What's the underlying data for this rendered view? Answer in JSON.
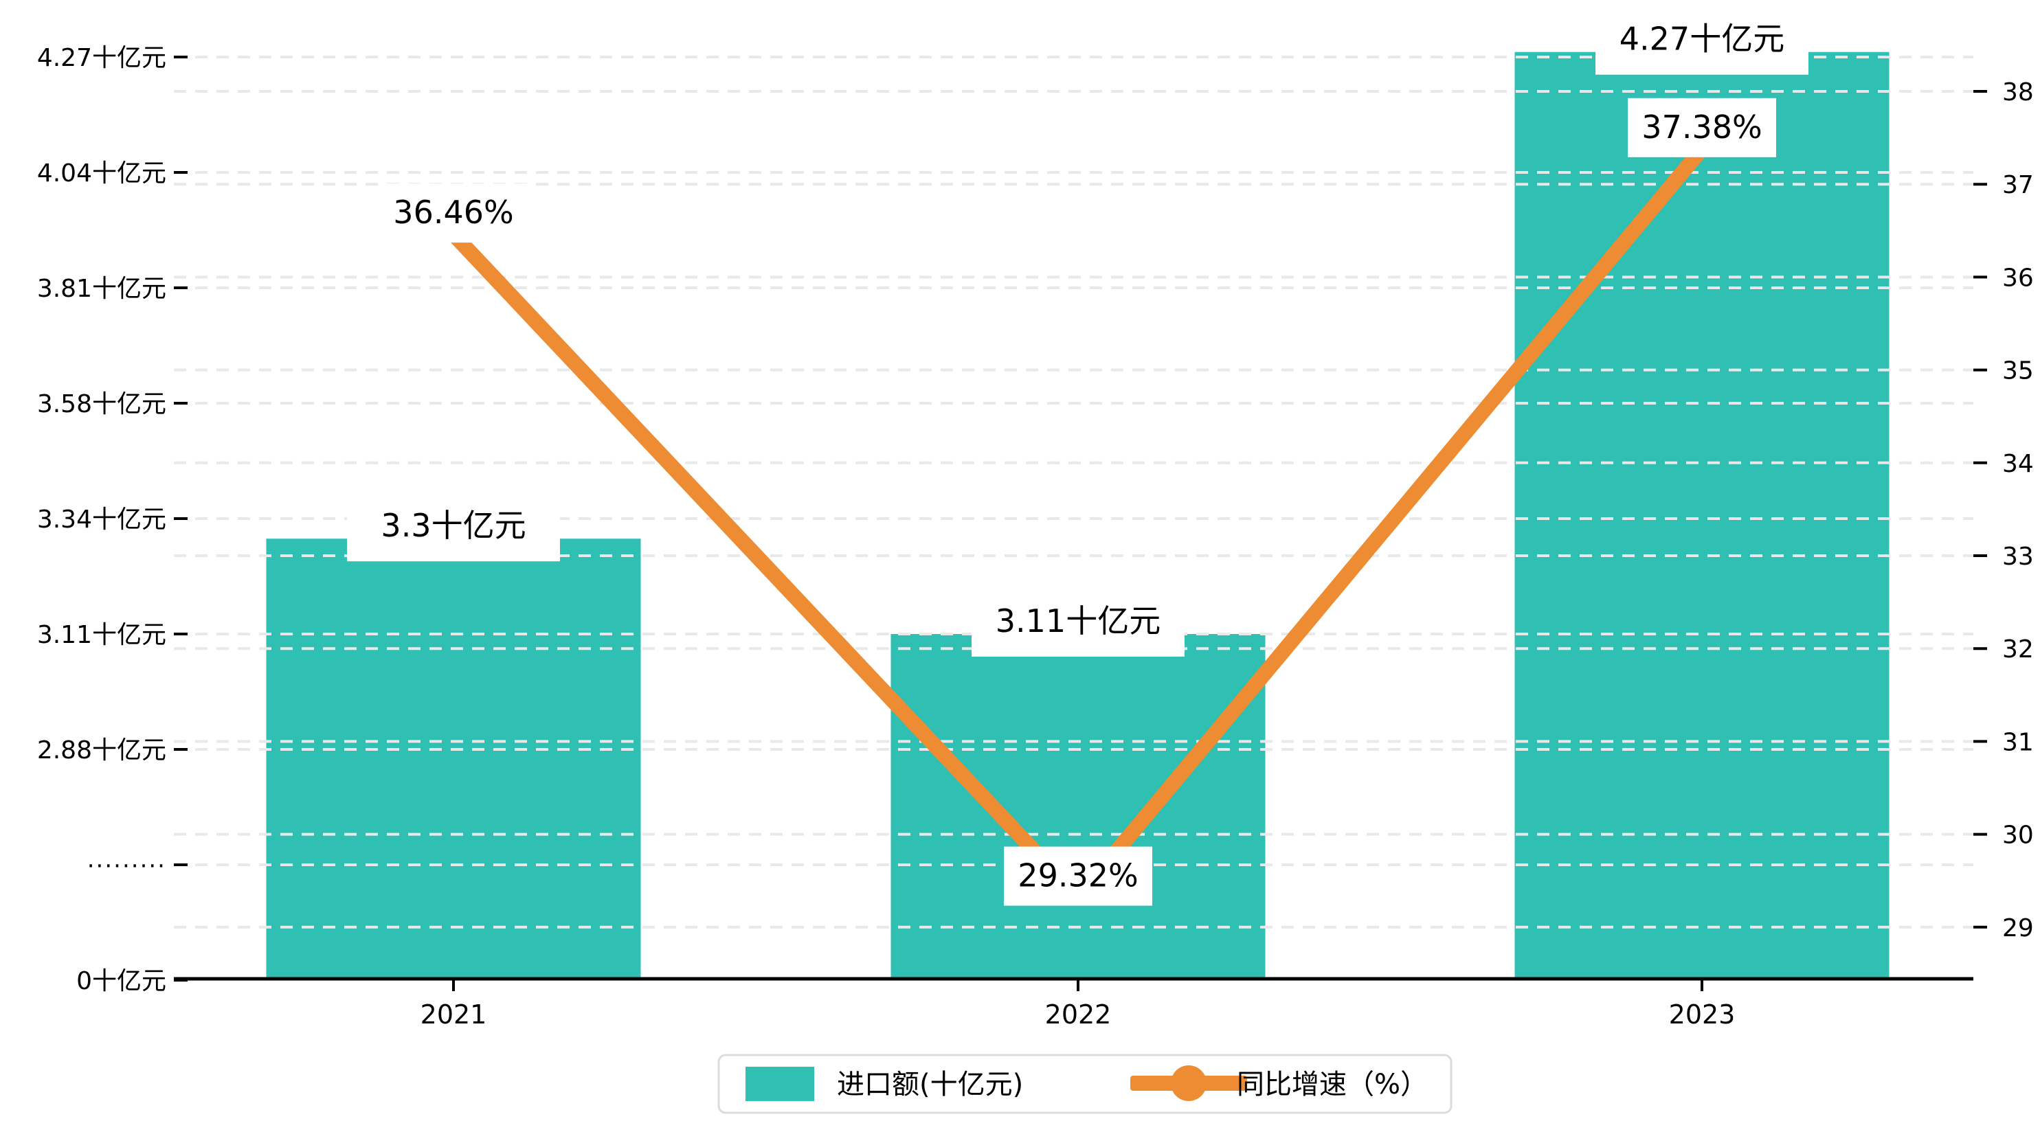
{
  "chart_data": {
    "type": "combo",
    "categories": [
      "2021",
      "2022",
      "2023"
    ],
    "series": [
      {
        "name": "进口额(十亿元)",
        "type": "bar",
        "axis": "left",
        "values": [
          3.3,
          3.11,
          4.27
        ],
        "labels": [
          "3.3十亿元",
          "3.11十亿元",
          "4.27十亿元"
        ],
        "color": "#2fbfb3"
      },
      {
        "name": "同比增速（%）",
        "type": "line",
        "axis": "right",
        "values": [
          36.46,
          29.32,
          37.38
        ],
        "labels": [
          "36.46%",
          "29.32%",
          "37.38%"
        ],
        "color": "#ee8c33"
      }
    ],
    "left_axis": {
      "unit": "十亿元",
      "has_break": true,
      "break_label": "·········",
      "tick_labels": [
        "4.27十亿元",
        "4.04十亿元",
        "3.81十亿元",
        "3.58十亿元",
        "3.34十亿元",
        "3.11十亿元",
        "2.88十亿元",
        "·········",
        "0十亿元"
      ],
      "tick_values": [
        4.27,
        4.04,
        3.81,
        3.58,
        3.34,
        3.11,
        2.88,
        null,
        0
      ]
    },
    "right_axis": {
      "min": 29,
      "max": 38,
      "step": 1,
      "tick_labels": [
        "38",
        "37",
        "36",
        "35",
        "34",
        "33",
        "32",
        "31",
        "30",
        "29"
      ]
    },
    "legend": {
      "items": [
        {
          "label": "进口额(十亿元)",
          "marker": "bar-swatch"
        },
        {
          "label": "同比增速（%）",
          "marker": "line-dot"
        }
      ]
    },
    "grid": {
      "style": "dashed",
      "color": "#e9e9e9"
    },
    "colors": {
      "bar": "#2fbfb3",
      "line": "#ee8c33",
      "axis": "#000000",
      "label_box": "#ffffff",
      "legend_border": "#dcdcdc",
      "background": "#ffffff"
    }
  }
}
